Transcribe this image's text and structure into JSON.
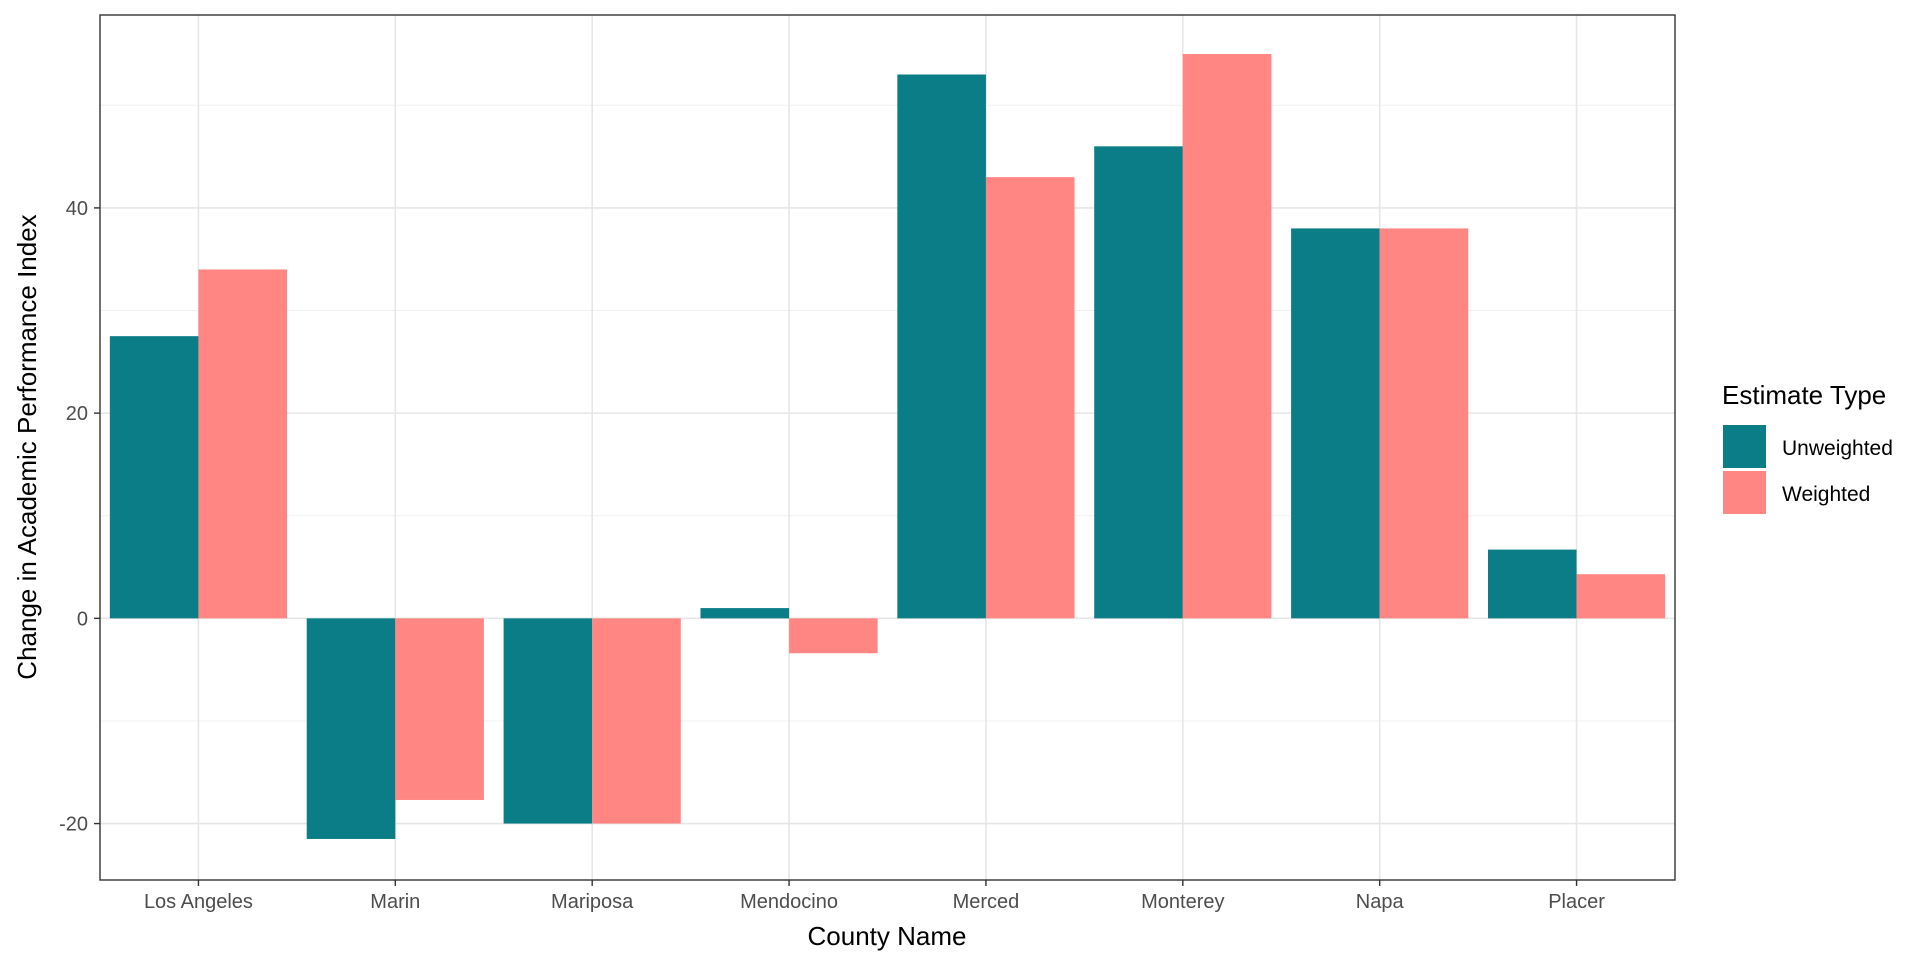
{
  "chart_data": {
    "type": "bar",
    "title": "",
    "xlabel": "County Name",
    "ylabel": "Change in Academic Performance Index",
    "categories": [
      "Los Angeles",
      "Marin",
      "Mariposa",
      "Mendocino",
      "Merced",
      "Monterey",
      "Napa",
      "Placer"
    ],
    "series": [
      {
        "name": "Unweighted",
        "color": "#0a7d87",
        "values": [
          27.5,
          -21.5,
          -20,
          1,
          53,
          46,
          38,
          6.7
        ]
      },
      {
        "name": "Weighted",
        "color": "#ff8682",
        "values": [
          34,
          -17.7,
          -20,
          -3.4,
          43,
          55,
          38,
          4.3
        ]
      }
    ],
    "ylim": [
      -25.5,
      58.8
    ],
    "yticks": [
      -20,
      0,
      20,
      40
    ],
    "grid": true,
    "legend": {
      "title": "Estimate Type",
      "position": "right"
    }
  }
}
